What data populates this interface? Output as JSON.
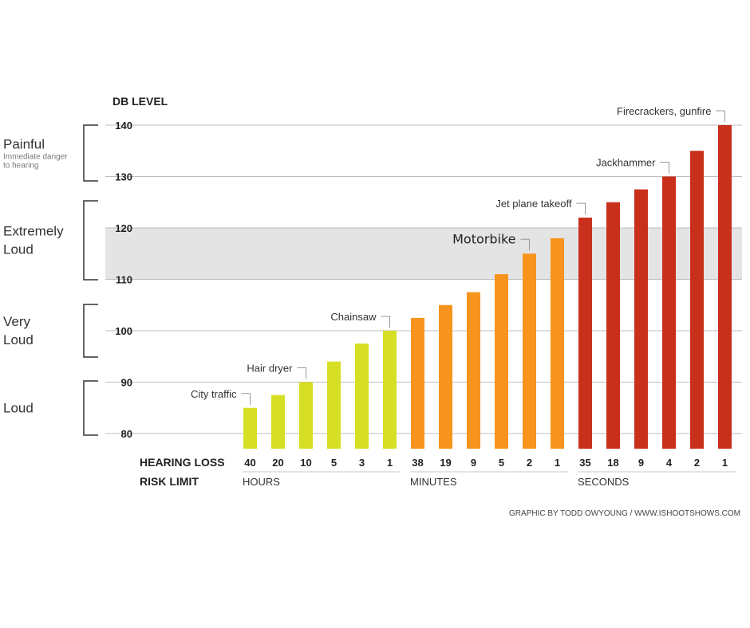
{
  "chart_data": {
    "type": "bar",
    "ylabel": "DB LEVEL",
    "ylim": [
      75,
      140
    ],
    "yticks": [
      80,
      90,
      100,
      110,
      120,
      130,
      140
    ],
    "grid": true,
    "highlight_band": [
      110,
      120
    ],
    "categories": [
      "40 hours",
      "20 hours",
      "10 hours",
      "5 hours",
      "3 hours",
      "1 hours",
      "38 minutes",
      "19 minutes",
      "9 minutes",
      "5 minutes",
      "2 minutes",
      "1 minutes",
      "35 seconds",
      "18 seconds",
      "9 seconds",
      "4 seconds",
      "2 seconds",
      "1 seconds"
    ],
    "values": [
      85,
      87.5,
      90,
      94,
      97.5,
      100,
      102.5,
      105,
      107.5,
      111,
      115,
      118,
      122,
      125,
      127.5,
      130,
      135,
      140
    ],
    "risk_limits": [
      "40",
      "20",
      "10",
      "5",
      "3",
      "1",
      "38",
      "19",
      "9",
      "5",
      "2",
      "1",
      "35",
      "18",
      "9",
      "4",
      "2",
      "1"
    ],
    "units": [
      {
        "label": "HOURS",
        "start": 0,
        "end": 5,
        "color": "#d6df23"
      },
      {
        "label": "MINUTES",
        "start": 6,
        "end": 11,
        "color": "#f7941d"
      },
      {
        "label": "SECONDS",
        "start": 12,
        "end": 17,
        "color": "#c9301c"
      }
    ],
    "annotations": [
      {
        "text": "City traffic",
        "index": 0,
        "style": "normal"
      },
      {
        "text": "Hair dryer",
        "index": 2,
        "style": "normal"
      },
      {
        "text": "Chainsaw",
        "index": 5,
        "style": "normal"
      },
      {
        "text": "Motorbike",
        "index": 10,
        "style": "large"
      },
      {
        "text": "Jet plane takeoff",
        "index": 12,
        "style": "normal"
      },
      {
        "text": "Jackhammer",
        "index": 15,
        "style": "normal"
      },
      {
        "text": "Firecrackers, gunfire",
        "index": 17,
        "style": "normal"
      }
    ],
    "noise_categories": [
      {
        "lines": [
          "Loud"
        ],
        "sub": [],
        "range": [
          80,
          90
        ]
      },
      {
        "lines": [
          "Very",
          "Loud"
        ],
        "sub": [],
        "range": [
          95,
          105
        ]
      },
      {
        "lines": [
          "Extremely",
          "Loud"
        ],
        "sub": [],
        "range": [
          110,
          125
        ]
      },
      {
        "lines": [
          "Painful"
        ],
        "sub": [
          "Immediate danger",
          "to hearing"
        ],
        "range": [
          130,
          140
        ]
      }
    ],
    "row_labels": [
      "HEARING LOSS",
      "RISK LIMIT"
    ],
    "credit": "GRAPHIC BY TODD OWYOUNG / WWW.ISHOOTSHOWS.COM"
  }
}
